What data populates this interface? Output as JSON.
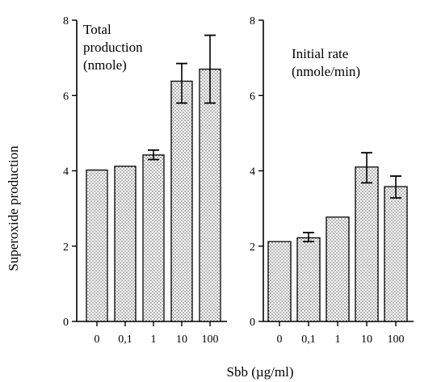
{
  "chart_data": [
    {
      "type": "bar",
      "title_lines": [
        "Total",
        "production",
        "(nmole)"
      ],
      "categories": [
        "0",
        "0,1",
        "1",
        "10",
        "100"
      ],
      "values": [
        4.02,
        4.12,
        4.42,
        6.38,
        6.7
      ],
      "error_bars": [
        null,
        null,
        [
          4.3,
          4.55
        ],
        [
          5.8,
          6.85
        ],
        [
          5.8,
          7.6
        ]
      ],
      "ylim": [
        0,
        8
      ],
      "yticks": [
        "0",
        "2",
        "4",
        "6",
        "8"
      ]
    },
    {
      "type": "bar",
      "title_lines": [
        "Initial rate",
        "(nmole/min)"
      ],
      "categories": [
        "0",
        "0,1",
        "1",
        "10",
        "100"
      ],
      "values": [
        2.12,
        2.22,
        2.77,
        4.1,
        3.58
      ],
      "error_bars": [
        null,
        [
          2.12,
          2.36
        ],
        null,
        [
          3.68,
          4.48
        ],
        [
          3.28,
          3.86
        ]
      ],
      "ylim": [
        0,
        8
      ],
      "yticks": [
        "0",
        "2",
        "4",
        "6",
        "8"
      ]
    }
  ],
  "ylabel": "Superoxide production",
  "xlabel": "Sbb (µg/ml)",
  "colors": {
    "bar_fill_dot": "#4a4a4a",
    "axis": "#000000"
  }
}
